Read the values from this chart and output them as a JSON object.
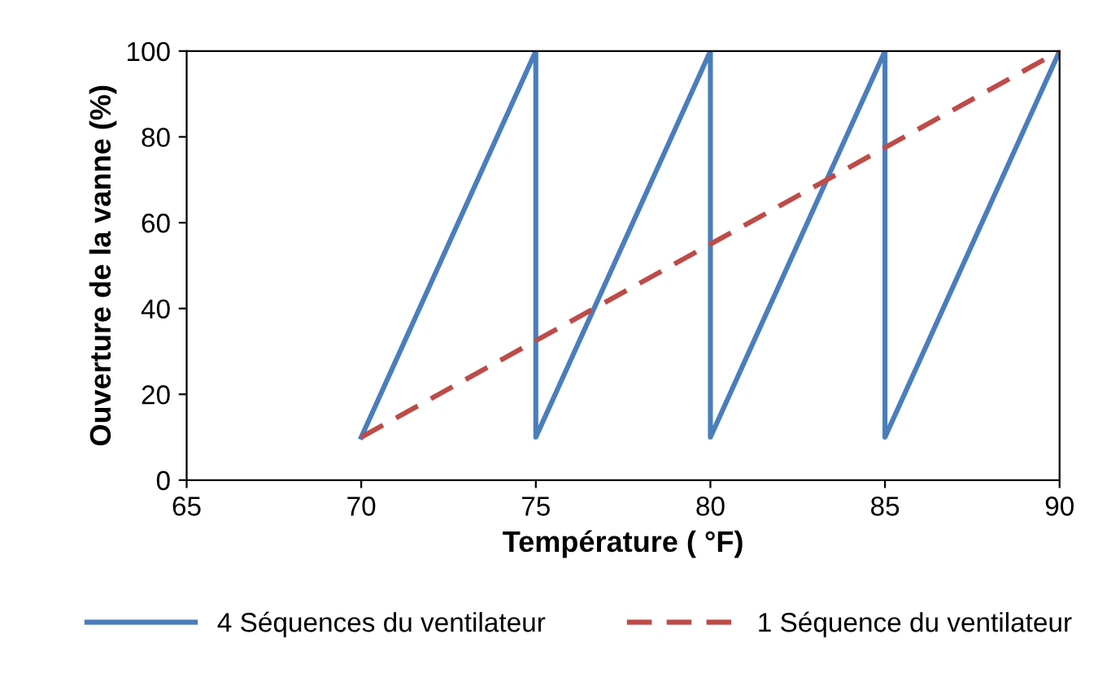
{
  "chart_data": {
    "type": "line",
    "xlabel": "Température ( °F)",
    "ylabel": "Ouverture de la vanne (%)",
    "xlim": [
      65,
      90
    ],
    "xticks": [
      65,
      70,
      75,
      80,
      85,
      90
    ],
    "ylim": [
      0,
      100
    ],
    "yticks": [
      0,
      20,
      40,
      60,
      80,
      100
    ],
    "grid": false,
    "legend": "bottom",
    "marker": "none",
    "series": [
      {
        "name": "4 Séquences du ventilateur",
        "color": "#4a7ebb",
        "line_style": "solid",
        "x": [
          70,
          75,
          75,
          80,
          80,
          85,
          85,
          90
        ],
        "values": [
          10,
          100,
          10,
          100,
          10,
          100,
          10,
          100
        ]
      },
      {
        "name": "1 Séquence du ventilateur",
        "color": "#be4b48",
        "line_style": "dashed",
        "x": [
          70,
          90
        ],
        "values": [
          10,
          100
        ]
      }
    ]
  }
}
